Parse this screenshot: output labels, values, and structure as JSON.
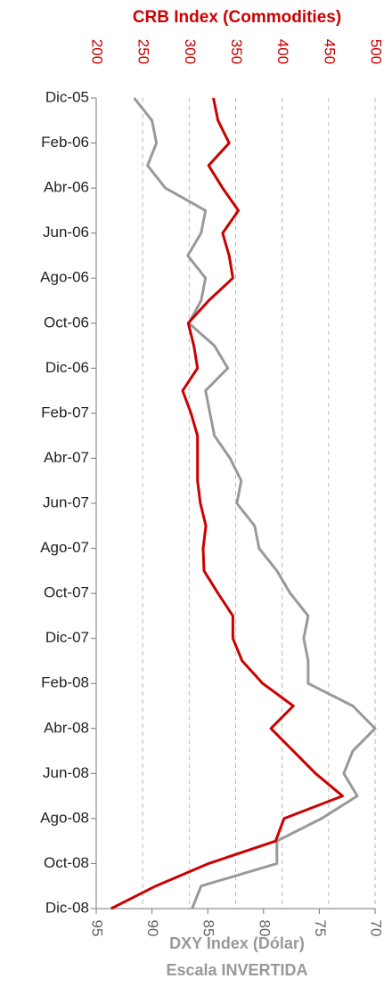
{
  "chart_data": {
    "type": "line",
    "orientation": "vertical",
    "title": "CRB Index (Commodities)",
    "x2_label": [
      "DXY Index (Dólar)",
      "Escala INVERTIDA"
    ],
    "categories": [
      "Dic-05",
      null,
      "Feb-06",
      null,
      "Abr-06",
      null,
      "Jun-06",
      null,
      "Ago-06",
      null,
      "Oct-06",
      null,
      "Dic-06",
      null,
      "Feb-07",
      null,
      "Abr-07",
      null,
      "Jun-07",
      null,
      "Ago-07",
      null,
      "Oct-07",
      null,
      "Dic-07",
      null,
      "Feb-08",
      null,
      "Abr-08",
      null,
      "Jun-08",
      null,
      "Ago-08",
      null,
      "Oct-08",
      null,
      "Dic-08"
    ],
    "xlim": [
      200,
      500
    ],
    "xticks": [
      200,
      250,
      300,
      350,
      400,
      450,
      500
    ],
    "x2lim": [
      95,
      70
    ],
    "x2ticks": [
      95,
      90,
      85,
      80,
      75,
      70
    ],
    "grid": true,
    "series": [
      {
        "name": "CRB Index (Commodities)",
        "color": "#cc0000",
        "axis": "x",
        "values": [
          326,
          331,
          343,
          321,
          336,
          353,
          336,
          343,
          347,
          321,
          299,
          305,
          309,
          293,
          302,
          309,
          309,
          309,
          312,
          318,
          315,
          316,
          331,
          347,
          347,
          357,
          379,
          412,
          388,
          412,
          436,
          465,
          402,
          393,
          321,
          264,
          216
        ]
      },
      {
        "name": "DXY Index (Dólar)",
        "color": "#999999",
        "axis": "x2",
        "values": [
          91.6,
          90.0,
          89.6,
          90.4,
          88.8,
          85.2,
          85.6,
          86.8,
          85.2,
          85.6,
          86.7,
          84.4,
          83.2,
          85.2,
          84.8,
          84.4,
          83.0,
          82.0,
          82.4,
          80.8,
          80.4,
          78.8,
          77.6,
          76.0,
          76.4,
          76.0,
          76.0,
          72.0,
          70.0,
          72.0,
          72.8,
          71.6,
          74.8,
          78.8,
          78.8,
          85.6,
          86.4
        ]
      }
    ]
  }
}
